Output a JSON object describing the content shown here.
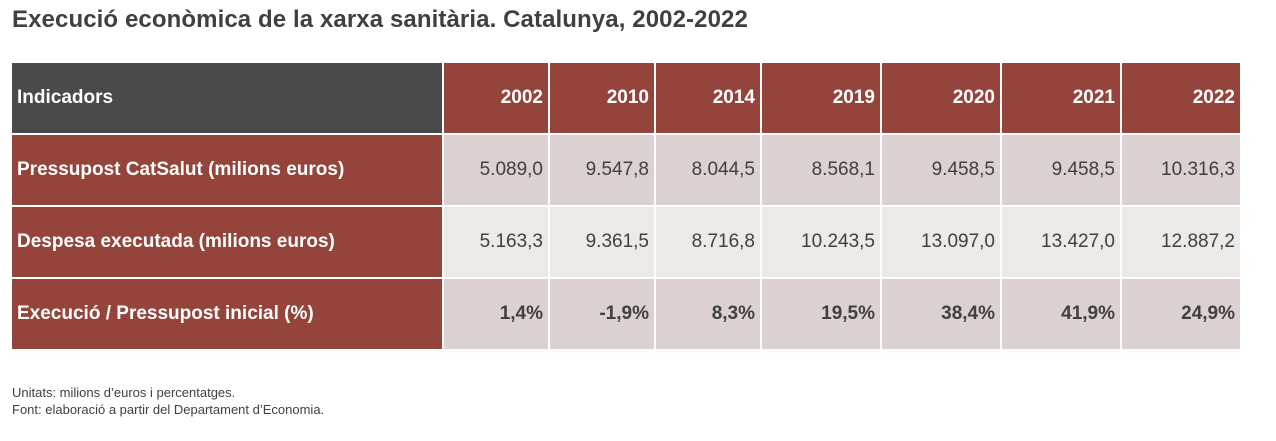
{
  "title": "Execució econòmica de la xarxa sanitària. Catalunya, 2002-2022",
  "table": {
    "header_label": "Indicadors",
    "years": [
      "2002",
      "2010",
      "2014",
      "2019",
      "2020",
      "2021",
      "2022"
    ],
    "rows": [
      {
        "label": "Pressupost CatSalut (milions euros)",
        "values": [
          "5.089,0",
          "9.547,8",
          "8.044,5",
          "8.568,1",
          "9.458,5",
          "9.458,5",
          "10.316,3"
        ]
      },
      {
        "label": "Despesa executada (milions euros)",
        "values": [
          "5.163,3",
          "9.361,5",
          "8.716,8",
          "10.243,5",
          "13.097,0",
          "13.427,0",
          "12.887,2"
        ]
      },
      {
        "label": "Execució / Pressupost inicial (%)",
        "values": [
          "1,4%",
          "-1,9%",
          "8,3%",
          "19,5%",
          "38,4%",
          "41,9%",
          "24,9%"
        ]
      }
    ]
  },
  "notes": {
    "units": "Unitats: milions d’euros i percentatges.",
    "source": "Font: elaboració a partir del Departament d’Economia."
  },
  "colors": {
    "header_dark": "#4a4a4a",
    "header_red": "#94443a",
    "cell_shade": "#dbd1d0",
    "cell_light": "#ede9e7",
    "text": "#404040"
  }
}
